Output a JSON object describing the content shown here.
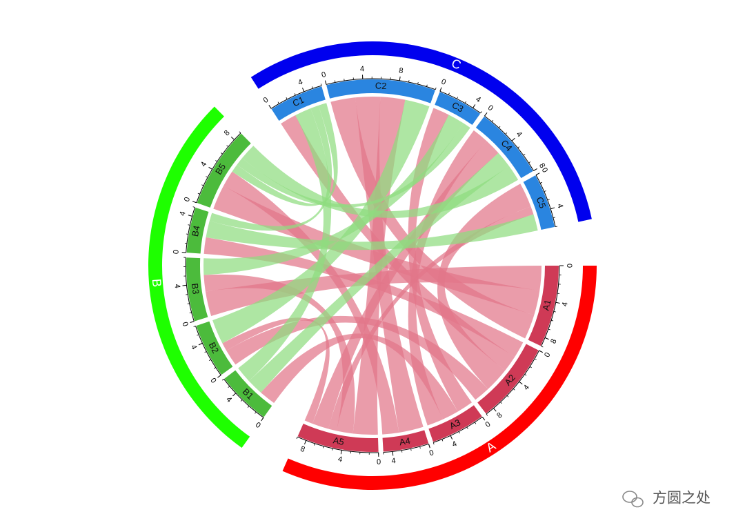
{
  "chart_data": {
    "type": "chord",
    "groups": [
      {
        "name": "A",
        "color": "#ff0000",
        "sector_color": "#cf3a56",
        "chord_color": "#e27689"
      },
      {
        "name": "B",
        "color": "#1eff00",
        "sector_color": "#4cbb3c",
        "chord_color": "#8fdc7f"
      },
      {
        "name": "C",
        "color": "#0000ee",
        "sector_color": "#2a85e0",
        "chord_color": "#8fdc7f"
      }
    ],
    "sectors": [
      {
        "name": "A1",
        "group": "A",
        "value": 9
      },
      {
        "name": "A2",
        "group": "A",
        "value": 9
      },
      {
        "name": "A3",
        "group": "A",
        "value": 6
      },
      {
        "name": "A4",
        "group": "A",
        "value": 5
      },
      {
        "name": "A5",
        "group": "A",
        "value": 9
      },
      {
        "name": "B1",
        "group": "B",
        "value": 6
      },
      {
        "name": "B2",
        "group": "B",
        "value": 6
      },
      {
        "name": "B3",
        "group": "B",
        "value": 7
      },
      {
        "name": "B4",
        "group": "B",
        "value": 5
      },
      {
        "name": "B5",
        "group": "B",
        "value": 9
      },
      {
        "name": "C1",
        "group": "C",
        "value": 6
      },
      {
        "name": "C2",
        "group": "C",
        "value": 12
      },
      {
        "name": "C3",
        "group": "C",
        "value": 5
      },
      {
        "name": "C4",
        "group": "C",
        "value": 8
      },
      {
        "name": "C5",
        "group": "C",
        "value": 6
      }
    ],
    "links": [
      {
        "source": "A1",
        "target": "B3",
        "value": 3
      },
      {
        "source": "A1",
        "target": "B5",
        "value": 3
      },
      {
        "source": "A1",
        "target": "C2",
        "value": 3
      },
      {
        "source": "A2",
        "target": "B4",
        "value": 2
      },
      {
        "source": "A2",
        "target": "C1",
        "value": 2
      },
      {
        "source": "A2",
        "target": "C5",
        "value": 3
      },
      {
        "source": "A2",
        "target": "B2",
        "value": 2
      },
      {
        "source": "A3",
        "target": "C3",
        "value": 2
      },
      {
        "source": "A3",
        "target": "B1",
        "value": 2
      },
      {
        "source": "A3",
        "target": "C4",
        "value": 2
      },
      {
        "source": "A4",
        "target": "C2",
        "value": 3
      },
      {
        "source": "A4",
        "target": "B5",
        "value": 2
      },
      {
        "source": "A5",
        "target": "C2",
        "value": 3
      },
      {
        "source": "A5",
        "target": "B3",
        "value": 2
      },
      {
        "source": "A5",
        "target": "C5",
        "value": 1
      },
      {
        "source": "A5",
        "target": "C4",
        "value": 2
      },
      {
        "source": "A5",
        "target": "B2",
        "value": 1
      },
      {
        "source": "B1",
        "target": "C4",
        "value": 2
      },
      {
        "source": "B1",
        "target": "C1",
        "value": 2
      },
      {
        "source": "B2",
        "target": "C2",
        "value": 3
      },
      {
        "source": "B3",
        "target": "C3",
        "value": 2
      },
      {
        "source": "B4",
        "target": "C5",
        "value": 2
      },
      {
        "source": "B4",
        "target": "C1",
        "value": 1
      },
      {
        "source": "B5",
        "target": "C1",
        "value": 1
      },
      {
        "source": "B5",
        "target": "C3",
        "value": 1
      },
      {
        "source": "B5",
        "target": "C4",
        "value": 2
      }
    ],
    "major_ticks": [
      0,
      4,
      8
    ],
    "minor_ticks": [
      0,
      1,
      2,
      3,
      4,
      5,
      6,
      7,
      8,
      9,
      10,
      11,
      12
    ]
  },
  "watermark": "方圆之处"
}
